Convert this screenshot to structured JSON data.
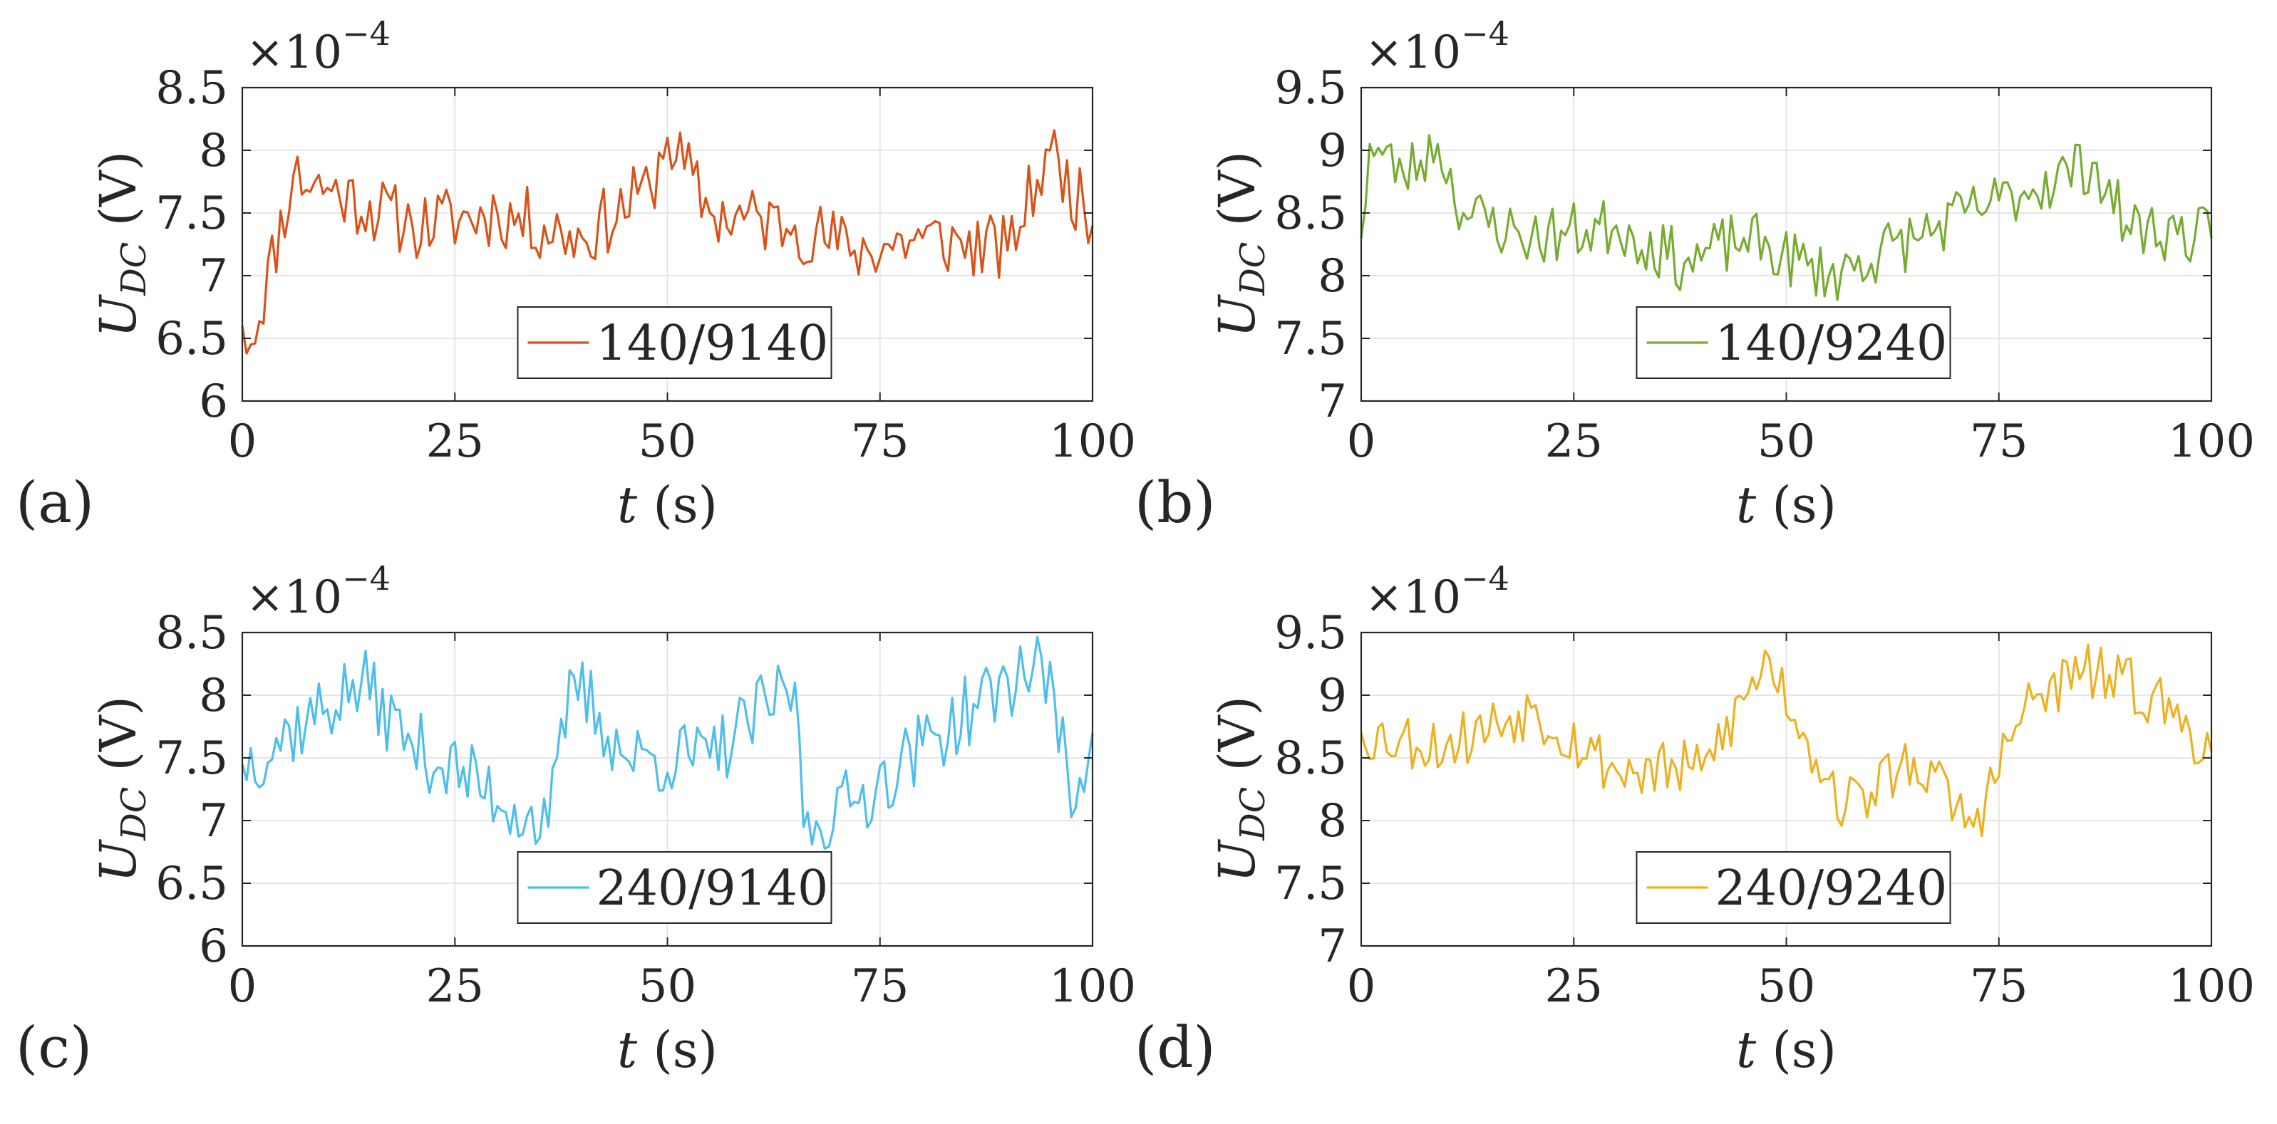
{
  "chart_data": [
    {
      "type": "line",
      "panel_label": "(a)",
      "series": [
        {
          "name": "140/9140",
          "color": "#D95319"
        }
      ],
      "xlabel": {
        "symbol": "t",
        "unit": "(s)"
      },
      "ylabel": {
        "symbol": "U",
        "subscript": "DC",
        "unit": "(V)"
      },
      "exponent": {
        "base": "×10",
        "power": "−4"
      },
      "xlim": [
        0,
        100
      ],
      "ylim": [
        6,
        8.5
      ],
      "xticks": [
        0,
        25,
        50,
        75,
        100
      ],
      "xtick_labels": [
        "0",
        "25",
        "50",
        "75",
        "100"
      ],
      "yticks": [
        6,
        6.5,
        7,
        7.5,
        8,
        8.5
      ],
      "ytick_labels": [
        "6",
        "6.5",
        "7",
        "7.5",
        "8",
        "8.5"
      ],
      "grid": true,
      "legend_position": "bottom-center",
      "noise": {
        "start": 6.6,
        "end": 7.45,
        "amplitude": 0.28,
        "seed": 11,
        "anchors": [
          [
            0,
            6.6
          ],
          [
            1,
            6.45
          ],
          [
            6,
            7.8
          ],
          [
            10,
            7.7
          ],
          [
            20,
            7.4
          ],
          [
            30,
            7.5
          ],
          [
            40,
            7.3
          ],
          [
            48,
            7.7
          ],
          [
            50,
            8.1
          ],
          [
            55,
            7.5
          ],
          [
            65,
            7.4
          ],
          [
            72,
            7.2
          ],
          [
            80,
            7.3
          ],
          [
            90,
            7.2
          ],
          [
            95,
            8.0
          ],
          [
            100,
            7.4
          ]
        ]
      }
    },
    {
      "type": "line",
      "panel_label": "(b)",
      "series": [
        {
          "name": "140/9240",
          "color": "#77AC30"
        }
      ],
      "xlabel": {
        "symbol": "t",
        "unit": "(s)"
      },
      "ylabel": {
        "symbol": "U",
        "subscript": "DC",
        "unit": "(V)"
      },
      "exponent": {
        "base": "×10",
        "power": "−4"
      },
      "xlim": [
        0,
        100
      ],
      "ylim": [
        7,
        9.5
      ],
      "xticks": [
        0,
        25,
        50,
        75,
        100
      ],
      "xtick_labels": [
        "0",
        "25",
        "50",
        "75",
        "100"
      ],
      "yticks": [
        7,
        7.5,
        8,
        8.5,
        9,
        9.5
      ],
      "ytick_labels": [
        "7",
        "7.5",
        "8",
        "8.5",
        "9",
        "9.5"
      ],
      "grid": true,
      "legend_position": "bottom-center",
      "noise": {
        "start": 8.25,
        "end": 8.4,
        "amplitude": 0.24,
        "seed": 23,
        "anchors": [
          [
            0,
            8.3
          ],
          [
            1,
            9.05
          ],
          [
            5,
            8.8
          ],
          [
            9,
            9.05
          ],
          [
            12,
            8.5
          ],
          [
            20,
            8.3
          ],
          [
            30,
            8.4
          ],
          [
            38,
            8.1
          ],
          [
            45,
            8.3
          ],
          [
            55,
            8.0
          ],
          [
            65,
            8.3
          ],
          [
            75,
            8.6
          ],
          [
            86,
            8.9
          ],
          [
            90,
            8.4
          ],
          [
            100,
            8.3
          ]
        ]
      }
    },
    {
      "type": "line",
      "panel_label": "(c)",
      "series": [
        {
          "name": "240/9140",
          "color": "#4DBEEE"
        }
      ],
      "xlabel": {
        "symbol": "t",
        "unit": "(s)"
      },
      "ylabel": {
        "symbol": "U",
        "subscript": "DC",
        "unit": "(V)"
      },
      "exponent": {
        "base": "×10",
        "power": "−4"
      },
      "xlim": [
        0,
        100
      ],
      "ylim": [
        6,
        8.5
      ],
      "xticks": [
        0,
        25,
        50,
        75,
        100
      ],
      "xtick_labels": [
        "0",
        "25",
        "50",
        "75",
        "100"
      ],
      "yticks": [
        6,
        6.5,
        7,
        7.5,
        8,
        8.5
      ],
      "ytick_labels": [
        "6",
        "6.5",
        "7",
        "7.5",
        "8",
        "8.5"
      ],
      "grid": true,
      "legend_position": "bottom-center",
      "noise": {
        "start": 7.4,
        "end": 7.6,
        "amplitude": 0.3,
        "seed": 37,
        "anchors": [
          [
            0,
            7.45
          ],
          [
            14,
            8.1
          ],
          [
            20,
            7.6
          ],
          [
            36,
            6.95
          ],
          [
            39,
            8.15
          ],
          [
            45,
            7.5
          ],
          [
            55,
            7.5
          ],
          [
            65,
            8.1
          ],
          [
            66,
            6.95
          ],
          [
            72,
            7.15
          ],
          [
            80,
            7.6
          ],
          [
            94,
            8.3
          ],
          [
            98,
            7.1
          ],
          [
            100,
            7.7
          ]
        ]
      }
    },
    {
      "type": "line",
      "panel_label": "(d)",
      "series": [
        {
          "name": "240/9240",
          "color": "#EDB120"
        }
      ],
      "xlabel": {
        "symbol": "t",
        "unit": "(s)"
      },
      "ylabel": {
        "symbol": "U",
        "subscript": "DC",
        "unit": "(V)"
      },
      "exponent": {
        "base": "×10",
        "power": "−4"
      },
      "xlim": [
        0,
        100
      ],
      "ylim": [
        7,
        9.5
      ],
      "xticks": [
        0,
        25,
        50,
        75,
        100
      ],
      "xtick_labels": [
        "0",
        "25",
        "50",
        "75",
        "100"
      ],
      "yticks": [
        7,
        7.5,
        8,
        8.5,
        9,
        9.5
      ],
      "ytick_labels": [
        "7",
        "7.5",
        "8",
        "8.5",
        "9",
        "9.5"
      ],
      "grid": true,
      "legend_position": "bottom-center",
      "noise": {
        "start": 8.7,
        "end": 8.55,
        "amplitude": 0.24,
        "seed": 53,
        "anchors": [
          [
            0,
            8.7
          ],
          [
            10,
            8.6
          ],
          [
            20,
            8.9
          ],
          [
            30,
            8.4
          ],
          [
            40,
            8.4
          ],
          [
            48,
            9.3
          ],
          [
            52,
            8.7
          ],
          [
            57,
            8.1
          ],
          [
            65,
            8.5
          ],
          [
            72,
            7.95
          ],
          [
            78,
            8.9
          ],
          [
            85,
            9.2
          ],
          [
            93,
            9.0
          ],
          [
            100,
            8.55
          ]
        ]
      }
    }
  ]
}
